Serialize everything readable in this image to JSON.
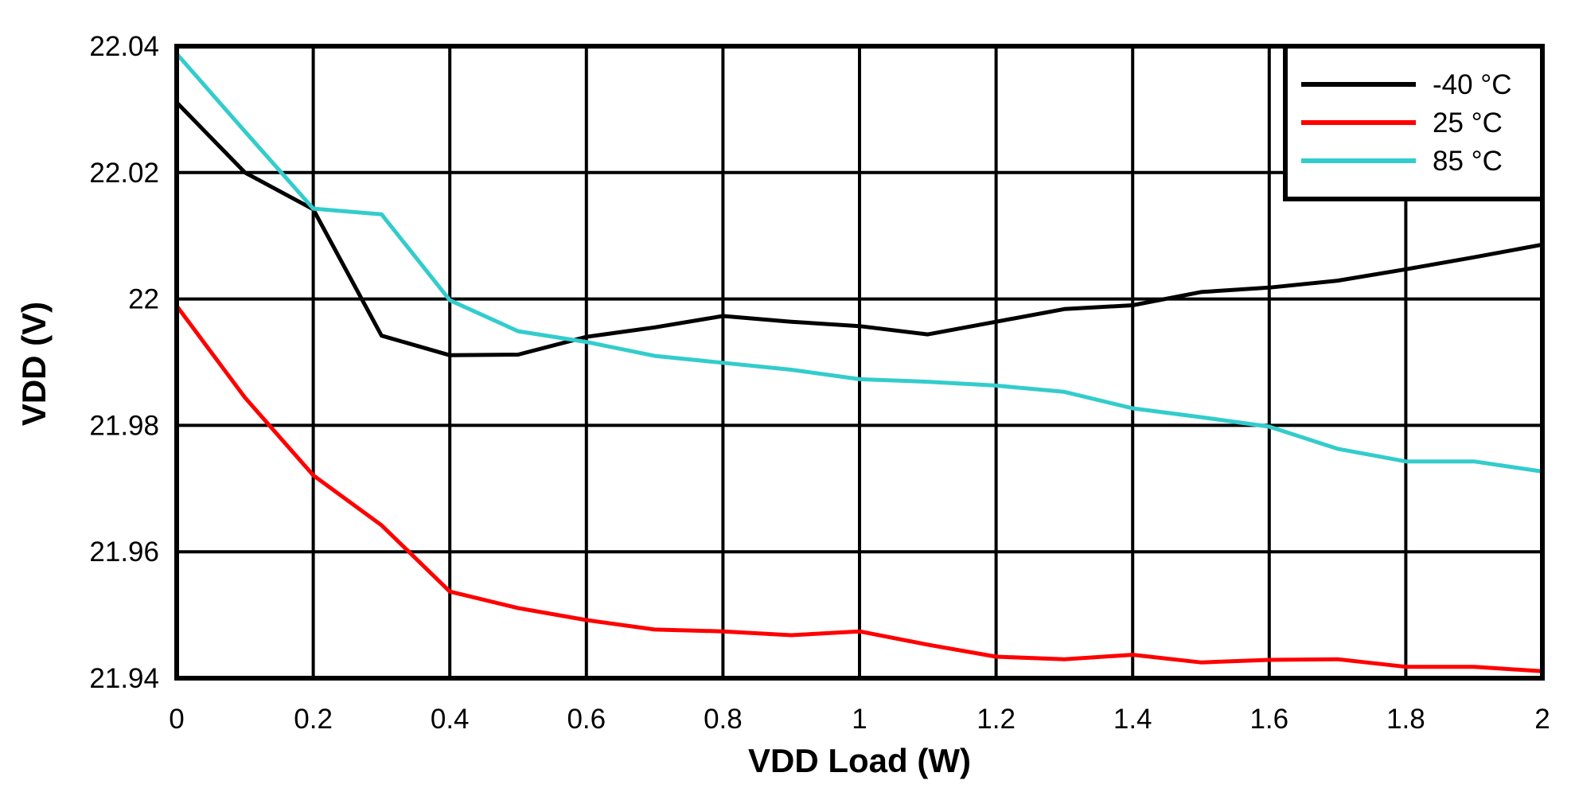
{
  "chart_data": {
    "type": "line",
    "title": "",
    "xlabel": "VDD Load (W)",
    "ylabel": "VDD (V)",
    "xlim": [
      0,
      2
    ],
    "ylim": [
      21.94,
      22.04
    ],
    "grid": true,
    "legend_position": "top-right",
    "x_ticks": [
      "0",
      "0.2",
      "0.4",
      "0.6",
      "0.8",
      "1",
      "1.2",
      "1.4",
      "1.6",
      "1.8",
      "2"
    ],
    "y_ticks": [
      "21.94",
      "21.96",
      "21.98",
      "22",
      "22.02",
      "22.04"
    ],
    "x": [
      0,
      0.1,
      0.2,
      0.3,
      0.4,
      0.5,
      0.6,
      0.7,
      0.8,
      0.9,
      1.0,
      1.1,
      1.2,
      1.3,
      1.4,
      1.5,
      1.6,
      1.7,
      1.8,
      1.9,
      2.0
    ],
    "series": [
      {
        "name": "-40 °C",
        "color": "#000000",
        "values": [
          22.0311,
          22.02,
          22.0142,
          21.9942,
          21.9911,
          21.9912,
          21.994,
          21.9955,
          21.9973,
          21.9964,
          21.9957,
          21.9944,
          21.9964,
          21.9984,
          21.999,
          22.0011,
          22.0018,
          22.0029,
          22.0047,
          22.0066,
          22.0086
        ]
      },
      {
        "name": "25 °C",
        "color": "#FF0000",
        "values": [
          21.9989,
          21.9844,
          21.9721,
          21.9642,
          21.9537,
          21.9511,
          21.9492,
          21.9477,
          21.9474,
          21.9468,
          21.9474,
          21.9453,
          21.9434,
          21.943,
          21.9437,
          21.9425,
          21.9429,
          21.943,
          21.9418,
          21.9418,
          21.9411
        ]
      },
      {
        "name": "85 °C",
        "color": "#33CCCC",
        "values": [
          22.0388,
          22.0265,
          22.0143,
          22.0134,
          21.9998,
          21.9949,
          21.9932,
          21.991,
          21.9899,
          21.9888,
          21.9873,
          21.9869,
          21.9863,
          21.9853,
          21.9827,
          21.9813,
          21.9798,
          21.9763,
          21.9743,
          21.9743,
          21.9727
        ]
      }
    ]
  }
}
